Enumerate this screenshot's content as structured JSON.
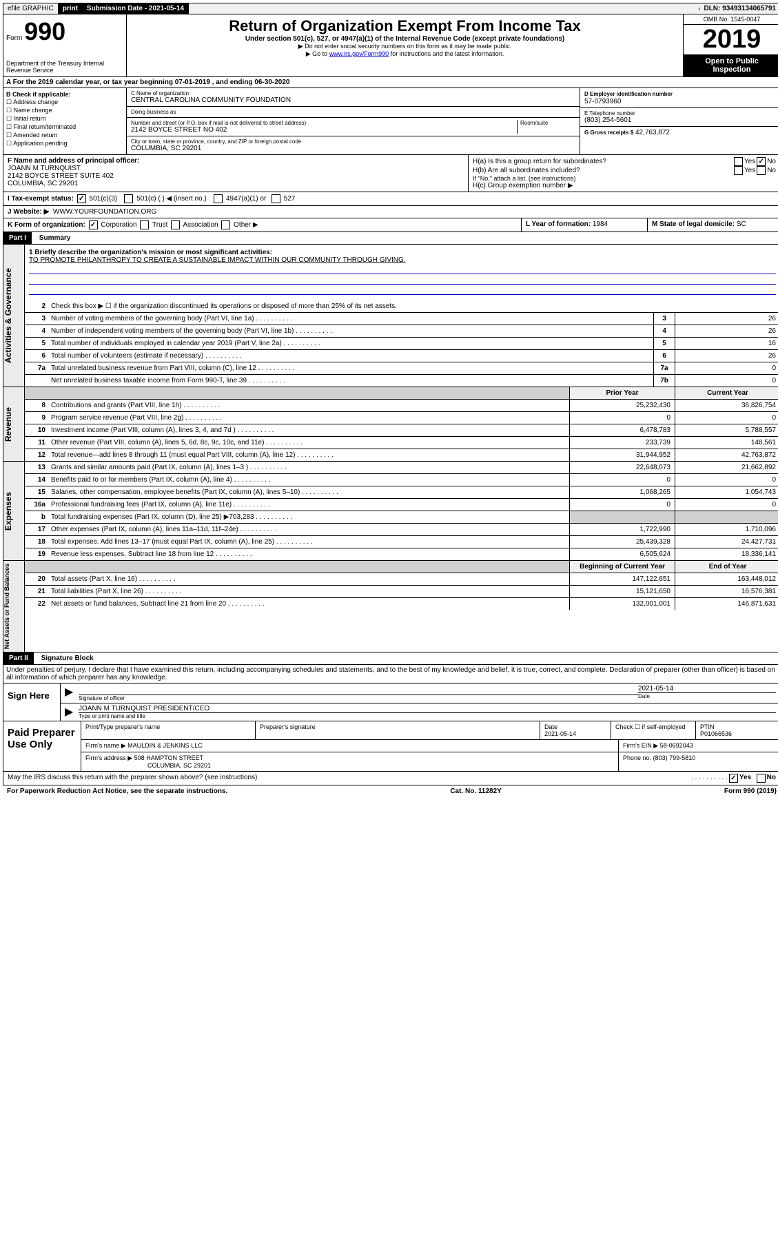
{
  "topbar": {
    "efile": "efile GRAPHIC",
    "print": "print",
    "submission_label": "Submission Date - 2021-05-14",
    "dln": "DLN: 93493134065791"
  },
  "header": {
    "form_label": "Form",
    "form_number": "990",
    "title": "Return of Organization Exempt From Income Tax",
    "subtitle": "Under section 501(c), 527, or 4947(a)(1) of the Internal Revenue Code (except private foundations)",
    "instruction1": "▶ Do not enter social security numbers on this form as it may be made public.",
    "instruction2_pre": "▶ Go to ",
    "instruction2_link": "www.irs.gov/Form990",
    "instruction2_post": " for instructions and the latest information.",
    "omb": "OMB No. 1545-0047",
    "year": "2019",
    "open_public": "Open to Public Inspection",
    "dept": "Department of the Treasury Internal Revenue Service"
  },
  "section_a": "A For the 2019 calendar year, or tax year beginning 07-01-2019    , and ending 06-30-2020",
  "section_b": {
    "label": "B Check if applicable:",
    "items": [
      "Address change",
      "Name change",
      "Initial return",
      "Final return/terminated",
      "Amended return",
      "Application pending"
    ]
  },
  "section_c": {
    "name_label": "C Name of organization",
    "name": "CENTRAL CAROLINA COMMUNITY FOUNDATION",
    "dba_label": "Doing business as",
    "addr_label": "Number and street (or P.O. box if mail is not delivered to street address)",
    "room_label": "Room/suite",
    "addr": "2142 BOYCE STREET NO 402",
    "city_label": "City or town, state or province, country, and ZIP or foreign postal code",
    "city": "COLUMBIA, SC  29201"
  },
  "section_d": {
    "label": "D Employer identification number",
    "value": "57-0793960"
  },
  "section_e": {
    "label": "E Telephone number",
    "value": "(803) 254-5601"
  },
  "section_g": {
    "label": "G Gross receipts $",
    "value": "42,763,872"
  },
  "section_f": {
    "label": "F  Name and address of principal officer:",
    "name": "JOANN M TURNQUIST",
    "addr1": "2142 BOYCE STREET SUITE 402",
    "addr2": "COLUMBIA, SC  29201"
  },
  "section_h": {
    "ha": "H(a)  Is this a group return for subordinates?",
    "hb": "H(b)  Are all subordinates included?",
    "hb_note": "If \"No,\" attach a list. (see instructions)",
    "hc": "H(c)  Group exemption number ▶",
    "yes": "Yes",
    "no": "No"
  },
  "tax_status": {
    "label": "I    Tax-exempt status:",
    "opt1": "501(c)(3)",
    "opt2": "501(c) (   ) ◀ (insert no.)",
    "opt3": "4947(a)(1) or",
    "opt4": "527"
  },
  "website": {
    "label": "J   Website: ▶",
    "value": "WWW.YOURFOUNDATION.ORG"
  },
  "section_k": {
    "label": "K Form of organization:",
    "opts": [
      "Corporation",
      "Trust",
      "Association",
      "Other ▶"
    ]
  },
  "section_l": {
    "label": "L Year of formation:",
    "value": "1984"
  },
  "section_m": {
    "label": "M State of legal domicile:",
    "value": "SC"
  },
  "part1": {
    "header": "Part I",
    "title": "Summary",
    "line1_label": "1  Briefly describe the organization's mission or most significant activities:",
    "mission": "TO PROMOTE PHILANTHROPY TO CREATE A SUSTAINABLE IMPACT WITHIN OUR COMMUNITY THROUGH GIVING.",
    "line2": "Check this box ▶ ☐  if the organization discontinued its operations or disposed of more than 25% of its net assets.",
    "lines_simple": [
      {
        "num": "3",
        "text": "Number of voting members of the governing body (Part VI, line 1a)",
        "box": "3",
        "val": "26"
      },
      {
        "num": "4",
        "text": "Number of independent voting members of the governing body (Part VI, line 1b)",
        "box": "4",
        "val": "26"
      },
      {
        "num": "5",
        "text": "Total number of individuals employed in calendar year 2019 (Part V, line 2a)",
        "box": "5",
        "val": "16"
      },
      {
        "num": "6",
        "text": "Total number of volunteers (estimate if necessary)",
        "box": "6",
        "val": "26"
      },
      {
        "num": "7a",
        "text": "Total unrelated business revenue from Part VIII, column (C), line 12",
        "box": "7a",
        "val": "0"
      },
      {
        "num": "",
        "text": "Net unrelated business taxable income from Form 990-T, line 39",
        "box": "7b",
        "val": "0"
      }
    ],
    "col_prior": "Prior Year",
    "col_current": "Current Year",
    "col_begin": "Beginning of Current Year",
    "col_end": "End of Year",
    "revenue": [
      {
        "num": "8",
        "text": "Contributions and grants (Part VIII, line 1h)",
        "prior": "25,232,430",
        "curr": "36,826,754"
      },
      {
        "num": "9",
        "text": "Program service revenue (Part VIII, line 2g)",
        "prior": "0",
        "curr": "0"
      },
      {
        "num": "10",
        "text": "Investment income (Part VIII, column (A), lines 3, 4, and 7d )",
        "prior": "6,478,783",
        "curr": "5,788,557"
      },
      {
        "num": "11",
        "text": "Other revenue (Part VIII, column (A), lines 5, 6d, 8c, 9c, 10c, and 11e)",
        "prior": "233,739",
        "curr": "148,561"
      },
      {
        "num": "12",
        "text": "Total revenue—add lines 8 through 11 (must equal Part VIII, column (A), line 12)",
        "prior": "31,944,952",
        "curr": "42,763,872"
      }
    ],
    "expenses": [
      {
        "num": "13",
        "text": "Grants and similar amounts paid (Part IX, column (A), lines 1–3 )",
        "prior": "22,648,073",
        "curr": "21,662,892"
      },
      {
        "num": "14",
        "text": "Benefits paid to or for members (Part IX, column (A), line 4)",
        "prior": "0",
        "curr": "0"
      },
      {
        "num": "15",
        "text": "Salaries, other compensation, employee benefits (Part IX, column (A), lines 5–10)",
        "prior": "1,068,265",
        "curr": "1,054,743"
      },
      {
        "num": "16a",
        "text": "Professional fundraising fees (Part IX, column (A), line 11e)",
        "prior": "0",
        "curr": "0"
      },
      {
        "num": "b",
        "text": "Total fundraising expenses (Part IX, column (D), line 25) ▶703,283",
        "prior": "",
        "curr": ""
      },
      {
        "num": "17",
        "text": "Other expenses (Part IX, column (A), lines 11a–11d, 11f–24e)",
        "prior": "1,722,990",
        "curr": "1,710,096"
      },
      {
        "num": "18",
        "text": "Total expenses. Add lines 13–17 (must equal Part IX, column (A), line 25)",
        "prior": "25,439,328",
        "curr": "24,427,731"
      },
      {
        "num": "19",
        "text": "Revenue less expenses. Subtract line 18 from line 12",
        "prior": "6,505,624",
        "curr": "18,336,141"
      }
    ],
    "netassets": [
      {
        "num": "20",
        "text": "Total assets (Part X, line 16)",
        "prior": "147,122,651",
        "curr": "163,448,012"
      },
      {
        "num": "21",
        "text": "Total liabilities (Part X, line 26)",
        "prior": "15,121,650",
        "curr": "16,576,381"
      },
      {
        "num": "22",
        "text": "Net assets or fund balances. Subtract line 21 from line 20",
        "prior": "132,001,001",
        "curr": "146,871,631"
      }
    ]
  },
  "part2": {
    "header": "Part II",
    "title": "Signature Block",
    "perjury": "Under penalties of perjury, I declare that I have examined this return, including accompanying schedules and statements, and to the best of my knowledge and belief, it is true, correct, and complete. Declaration of preparer (other than officer) is based on all information of which preparer has any knowledge."
  },
  "sign": {
    "label": "Sign Here",
    "sig_label": "Signature of officer",
    "date": "2021-05-14",
    "date_label": "Date",
    "name": "JOANN M TURNQUIST  PRESIDENT/CEO",
    "name_label": "Type or print name and title"
  },
  "preparer": {
    "label": "Paid Preparer Use Only",
    "col1": "Print/Type preparer's name",
    "col2": "Preparer's signature",
    "col3_label": "Date",
    "col3": "2021-05-14",
    "col4_label": "Check ☐ if self-employed",
    "col5_label": "PTIN",
    "col5": "P01066536",
    "firm_name_label": "Firm's name      ▶",
    "firm_name": "MAULDIN & JENKINS LLC",
    "firm_ein_label": "Firm's EIN ▶",
    "firm_ein": "58-0692043",
    "firm_addr_label": "Firm's address ▶",
    "firm_addr1": "508 HAMPTON STREET",
    "firm_addr2": "COLUMBIA, SC  29201",
    "phone_label": "Phone no.",
    "phone": "(803) 799-5810"
  },
  "footer": {
    "discuss": "May the IRS discuss this return with the preparer shown above? (see instructions)",
    "yes": "Yes",
    "no": "No",
    "paperwork": "For Paperwork Reduction Act Notice, see the separate instructions.",
    "cat": "Cat. No. 11282Y",
    "form": "Form 990 (2019)"
  },
  "sidelabels": {
    "gov": "Activities & Governance",
    "rev": "Revenue",
    "exp": "Expenses",
    "net": "Net Assets or Fund Balances"
  }
}
